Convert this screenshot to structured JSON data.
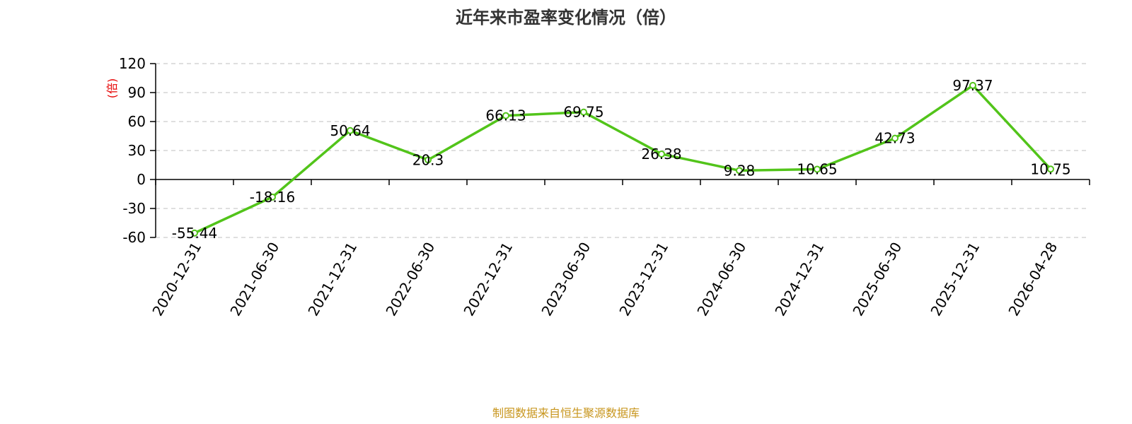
{
  "chart_data": {
    "type": "line",
    "title": "近年来市盈率变化情况（倍）",
    "ylabel": "(倍)",
    "xlabel": "",
    "categories": [
      "2020-12-31",
      "2021-06-30",
      "2021-12-31",
      "2022-06-30",
      "2022-12-31",
      "2023-06-30",
      "2023-12-31",
      "2024-06-30",
      "2024-12-31",
      "2025-06-30",
      "2025-12-31",
      "2026-04-28"
    ],
    "values": [
      -55.44,
      -18.16,
      50.64,
      20.3,
      66.13,
      69.75,
      26.38,
      9.28,
      10.65,
      42.73,
      97.37,
      10.75
    ],
    "data_labels": [
      "-55.44",
      "-18.16",
      "50.64",
      "20.3",
      "66.13",
      "69.75",
      "26.38",
      "9.28",
      "10.65",
      "42.73",
      "97.37",
      "10.75"
    ],
    "yticks": [
      120,
      90,
      60,
      30,
      0,
      -30,
      -60
    ],
    "ylim": [
      -60,
      120
    ],
    "grid": true,
    "legend": "none",
    "line_color": "#52c41a",
    "ylabel_color": "#e60000"
  },
  "footer": {
    "source": "制图数据来自恒生聚源数据库",
    "source_color": "#c8961e"
  }
}
